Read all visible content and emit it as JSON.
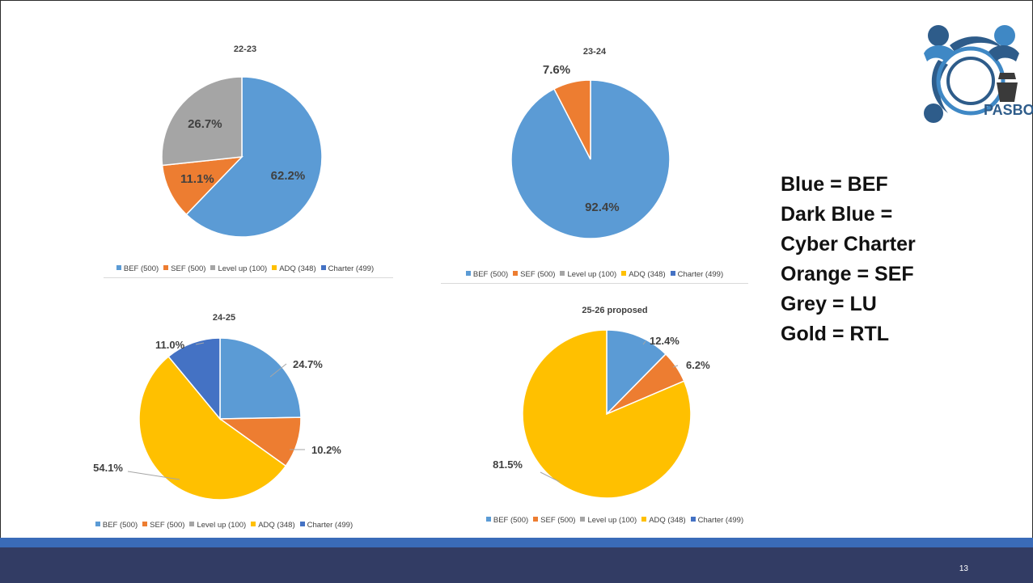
{
  "colors": {
    "bef": "#5b9bd5",
    "sef": "#ed7d31",
    "level_up": "#a5a5a5",
    "adq": "#ffc000",
    "charter": "#4472c4",
    "footer": "#323c64",
    "footer_stripe": "#3a6bb8"
  },
  "legend_entries": [
    {
      "label": "BEF (500)",
      "color": "#5b9bd5"
    },
    {
      "label": "SEF (500)",
      "color": "#ed7d31"
    },
    {
      "label": "Level up (100)",
      "color": "#a5a5a5"
    },
    {
      "label": "ADQ (348)",
      "color": "#ffc000"
    },
    {
      "label": "Charter (499)",
      "color": "#4472c4"
    }
  ],
  "chart_data": [
    {
      "type": "pie",
      "title": "22-23",
      "slices": [
        {
          "name": "BEF (500)",
          "value": 62.2,
          "label": "62.2%",
          "color": "#5b9bd5"
        },
        {
          "name": "SEF (500)",
          "value": 11.1,
          "label": "11.1%",
          "color": "#ed7d31"
        },
        {
          "name": "Level up (100)",
          "value": 26.7,
          "label": "26.7%",
          "color": "#a5a5a5"
        }
      ],
      "legend": "bottom",
      "label_style": "inside"
    },
    {
      "type": "pie",
      "title": "23-24",
      "slices": [
        {
          "name": "BEF (500)",
          "value": 92.4,
          "label": "92.4%",
          "color": "#5b9bd5"
        },
        {
          "name": "SEF (500)",
          "value": 7.6,
          "label": "7.6%",
          "color": "#ed7d31"
        }
      ],
      "legend": "bottom",
      "label_style": "inside"
    },
    {
      "type": "pie",
      "title": "24-25",
      "slices": [
        {
          "name": "BEF (500)",
          "value": 24.7,
          "label": "24.7%",
          "color": "#5b9bd5"
        },
        {
          "name": "SEF (500)",
          "value": 10.2,
          "label": "10.2%",
          "color": "#ed7d31"
        },
        {
          "name": "ADQ (348)",
          "value": 54.1,
          "label": "54.1%",
          "color": "#ffc000"
        },
        {
          "name": "Charter (499)",
          "value": 11.0,
          "label": "11.0%",
          "color": "#4472c4"
        }
      ],
      "legend": "bottom",
      "label_style": "outside-leader"
    },
    {
      "type": "pie",
      "title": "25-26 proposed",
      "slices": [
        {
          "name": "BEF (500)",
          "value": 12.4,
          "label": "12.4%",
          "color": "#5b9bd5"
        },
        {
          "name": "SEF (500)",
          "value": 6.2,
          "label": "6.2%",
          "color": "#ed7d31"
        },
        {
          "name": "ADQ (348)",
          "value": 81.5,
          "label": "81.5%",
          "color": "#ffc000"
        }
      ],
      "legend": "bottom",
      "label_style": "outside-leader"
    }
  ],
  "key_lines": [
    "Blue = BEF",
    "Dark Blue =",
    "Cyber Charter",
    "Orange = SEF",
    "Grey = LU",
    "Gold = RTL"
  ],
  "logo": {
    "text": "PASBO"
  },
  "page_number": "13"
}
